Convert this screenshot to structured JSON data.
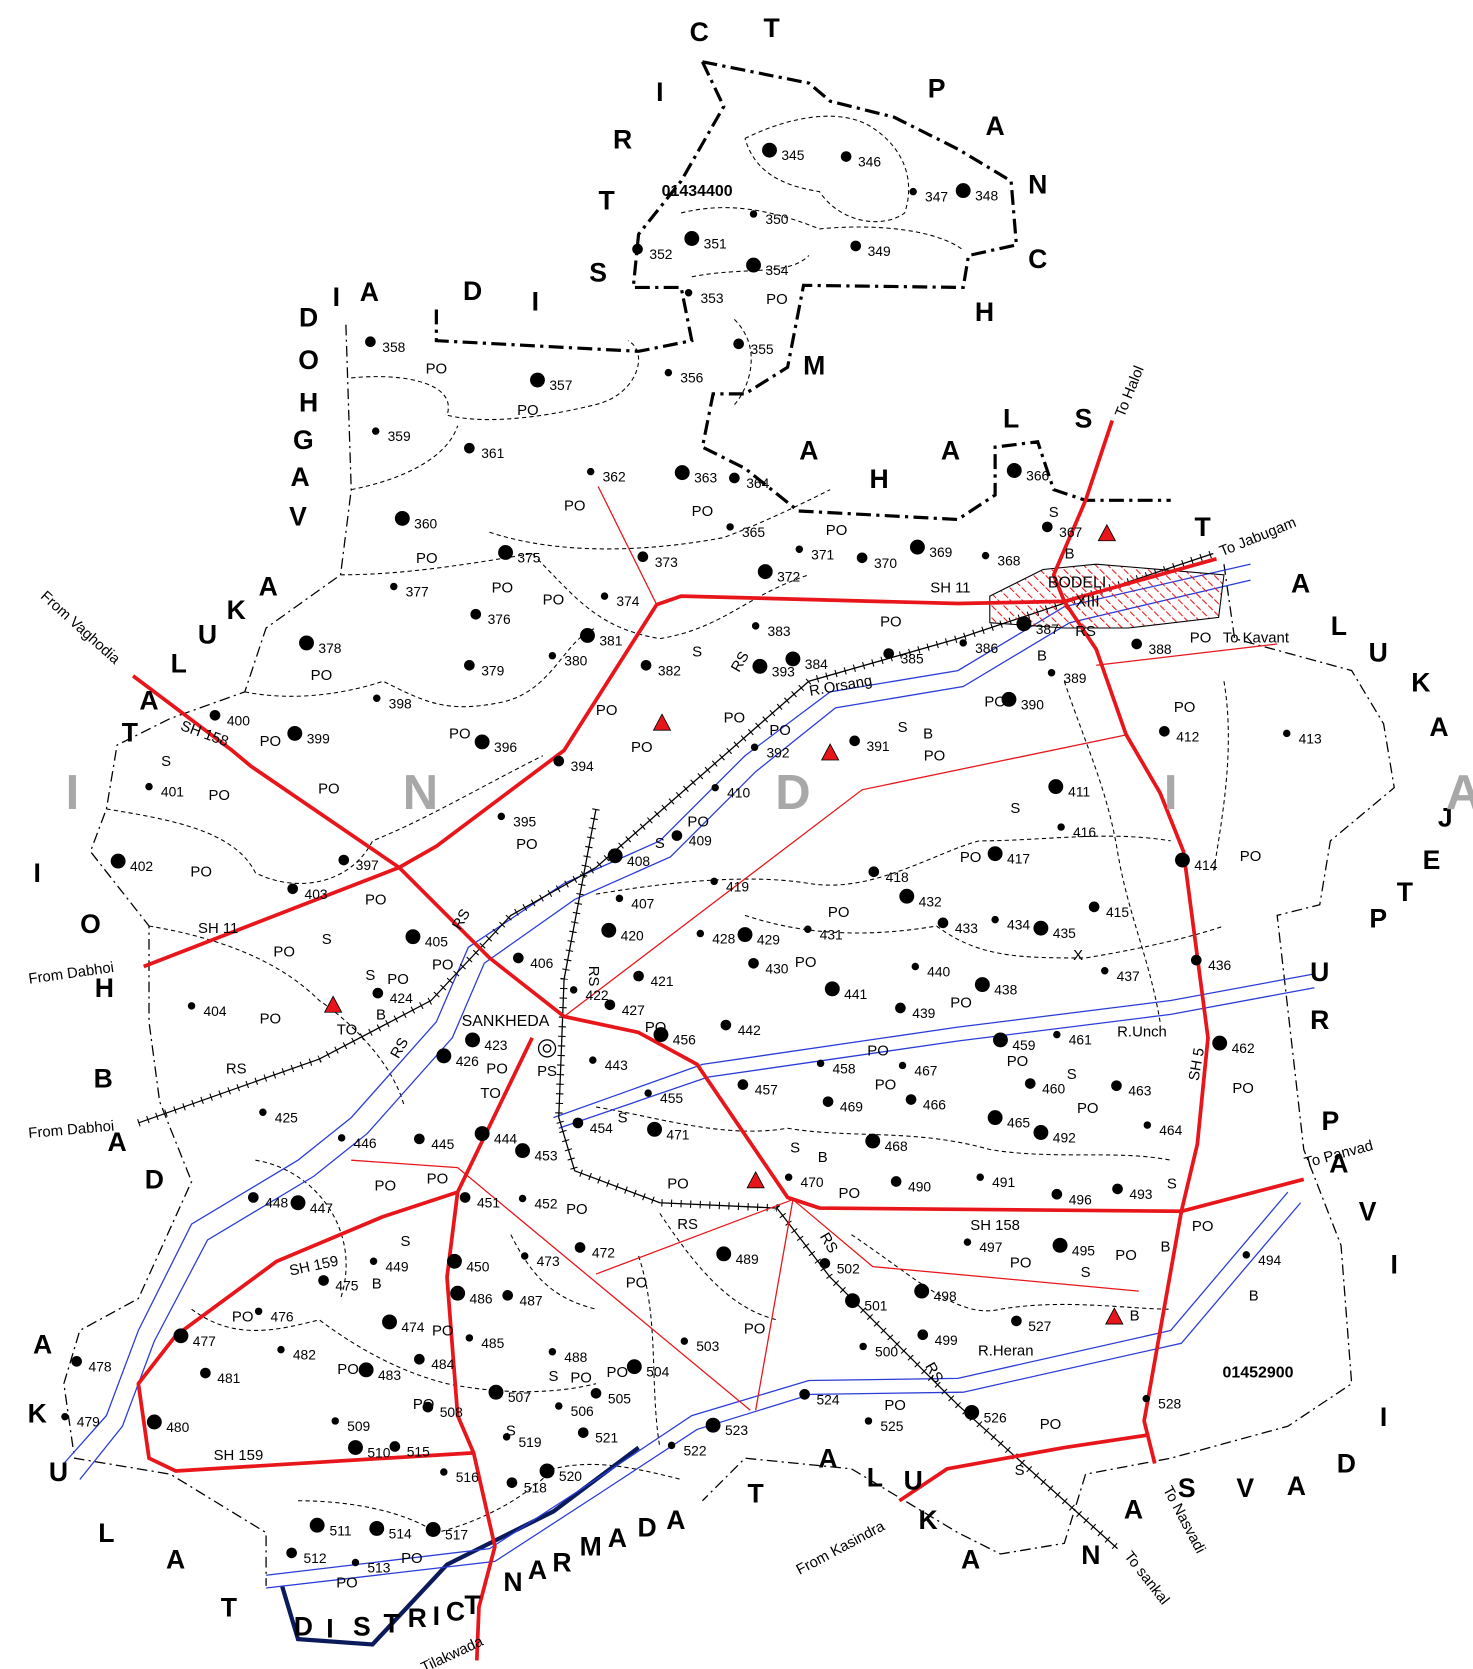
{
  "map": {
    "villages": [
      345,
      346,
      347,
      348,
      349,
      350,
      351,
      352,
      353,
      354,
      355,
      356,
      357,
      358,
      359,
      360,
      361,
      362,
      363,
      364,
      365,
      366,
      367,
      368,
      369,
      370,
      371,
      372,
      373,
      374,
      375,
      376,
      377,
      378,
      379,
      380,
      381,
      382,
      383,
      384,
      385,
      386,
      387,
      388,
      389,
      390,
      391,
      392,
      393,
      394,
      395,
      396,
      397,
      398,
      399,
      400,
      401,
      402,
      403,
      404,
      405,
      406,
      407,
      408,
      409,
      410,
      411,
      412,
      413,
      414,
      415,
      416,
      417,
      418,
      419,
      420,
      421,
      422,
      423,
      424,
      425,
      426,
      427,
      428,
      429,
      430,
      431,
      432,
      433,
      434,
      435,
      436,
      437,
      438,
      439,
      440,
      441,
      442,
      443,
      444,
      445,
      446,
      447,
      448,
      449,
      450,
      451,
      452,
      453,
      454,
      455,
      456,
      457,
      458,
      459,
      460,
      461,
      462,
      463,
      464,
      465,
      466,
      467,
      468,
      469,
      470,
      471,
      472,
      473,
      474,
      475,
      476,
      477,
      478,
      479,
      480,
      481,
      482,
      483,
      484,
      485,
      486,
      487,
      488,
      489,
      490,
      491,
      492,
      493,
      494,
      495,
      496,
      497,
      498,
      499,
      500,
      501,
      502,
      503,
      504,
      505,
      506,
      507,
      508,
      509,
      510,
      515,
      516,
      517,
      518,
      519,
      520,
      521,
      522,
      523,
      524,
      525,
      526,
      527,
      528,
      511,
      512,
      513,
      514
    ],
    "region_labels": [
      "DISTRICT PANCHMAHALS",
      "VAGHODIA",
      "TALUKA",
      "DABHOI",
      "TALUKA",
      "DISTRICT NARMADA",
      "TALUKA",
      "NASVADI",
      "TALUKA",
      "JETPUR PAVI"
    ],
    "country": "INDIA",
    "codes": [
      "01434400",
      "01452900"
    ],
    "places": [
      "SANKHEDA",
      "BODELI",
      "XIII"
    ],
    "roads": [
      "SH 11",
      "SH 11",
      "SH 158",
      "SH 158",
      "SH 159",
      "SH 159",
      "SH 5"
    ],
    "rivers": [
      "R.Orsang",
      "R.Unch",
      "R.Heran"
    ],
    "directions": [
      "From Vaghodia",
      "From Dabhoi",
      "From Dabhoi",
      "To Halol",
      "To Jabugam",
      "To Kavant",
      "To Panvad",
      "To Nasvadi",
      "To sankal",
      "From Kasindra",
      "Tilakwada"
    ],
    "po": [
      "PO",
      "PO",
      "PO",
      "PO",
      "PO",
      "PO",
      "PO",
      "PO",
      "PO",
      "PO",
      "PO",
      "PO",
      "PO",
      "PO",
      "PO",
      "PO",
      "PO",
      "PO",
      "PO",
      "PO",
      "PO",
      "PO",
      "PO",
      "PO",
      "PO",
      "PO",
      "PO",
      "PO",
      "PO",
      "PO",
      "PO",
      "PO",
      "PO",
      "PO",
      "PO",
      "PO",
      "PO",
      "PO",
      "PO",
      "PO",
      "PO",
      "PO",
      "PO",
      "PO",
      "PO",
      "PO",
      "PO",
      "PO",
      "PO",
      "PO",
      "PO",
      "PO",
      "PO",
      "PO",
      "PO",
      "PO",
      "PO",
      "PO",
      "PO",
      "PO",
      "PO",
      "PO",
      "PO"
    ],
    "s": [
      "S",
      "S",
      "S",
      "S",
      "S",
      "S",
      "S",
      "S",
      "S",
      "S",
      "S",
      "S",
      "S",
      "S",
      "S",
      "S",
      "S"
    ],
    "b": [
      "B",
      "B",
      "B",
      "B",
      "B",
      "B",
      "B",
      "B",
      "B"
    ],
    "rs": [
      "RS",
      "RS",
      "RS",
      "RS",
      "RS",
      "RS",
      "RS",
      "RS",
      "RS"
    ],
    "other": [
      "TO",
      "TO",
      "PS",
      "X"
    ]
  }
}
